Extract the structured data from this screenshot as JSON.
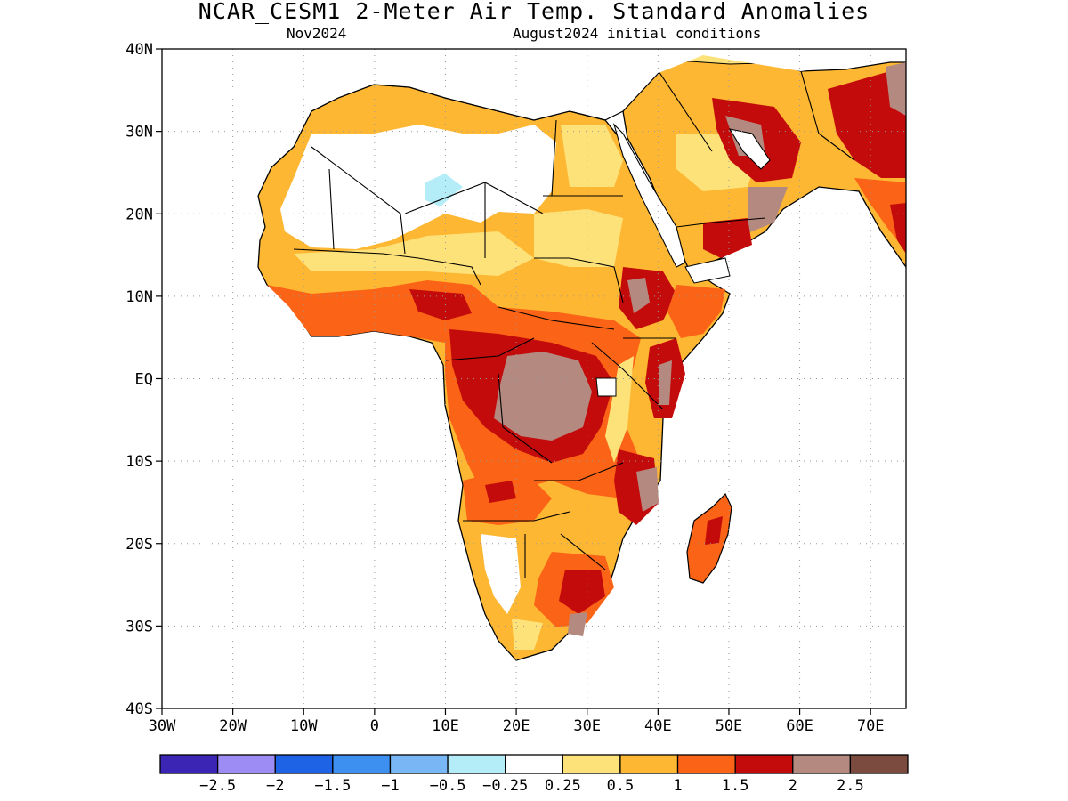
{
  "title": "NCAR_CESM1 2-Meter Air Temp. Standard Anomalies",
  "subtitle_left": "Nov2024",
  "subtitle_right": "August2024 initial conditions",
  "map": {
    "lon_range": [
      -30,
      75
    ],
    "lat_range": [
      -40,
      40
    ],
    "lon_labels": [
      "30W",
      "20W",
      "10W",
      "0",
      "10E",
      "20E",
      "30E",
      "40E",
      "50E",
      "60E",
      "70E"
    ],
    "lat_labels": [
      "40N",
      "30N",
      "20N",
      "10N",
      "EQ",
      "10S",
      "20S",
      "30S",
      "40S"
    ]
  },
  "colorbar": {
    "colors": [
      "#3b25b5",
      "#9e8cf5",
      "#1e62e6",
      "#3d8ff0",
      "#78b6f5",
      "#b4ecf8",
      "#ffffff",
      "#fde27a",
      "#fdb732",
      "#fb6316",
      "#c40b0b",
      "#b48a80",
      "#7b4b40"
    ],
    "labels": [
      "-2.5",
      "-2",
      "-1.5",
      "-1",
      "-0.5",
      "-0.25",
      "0.25",
      "0.5",
      "1",
      "1.5",
      "2",
      "2.5"
    ]
  }
}
